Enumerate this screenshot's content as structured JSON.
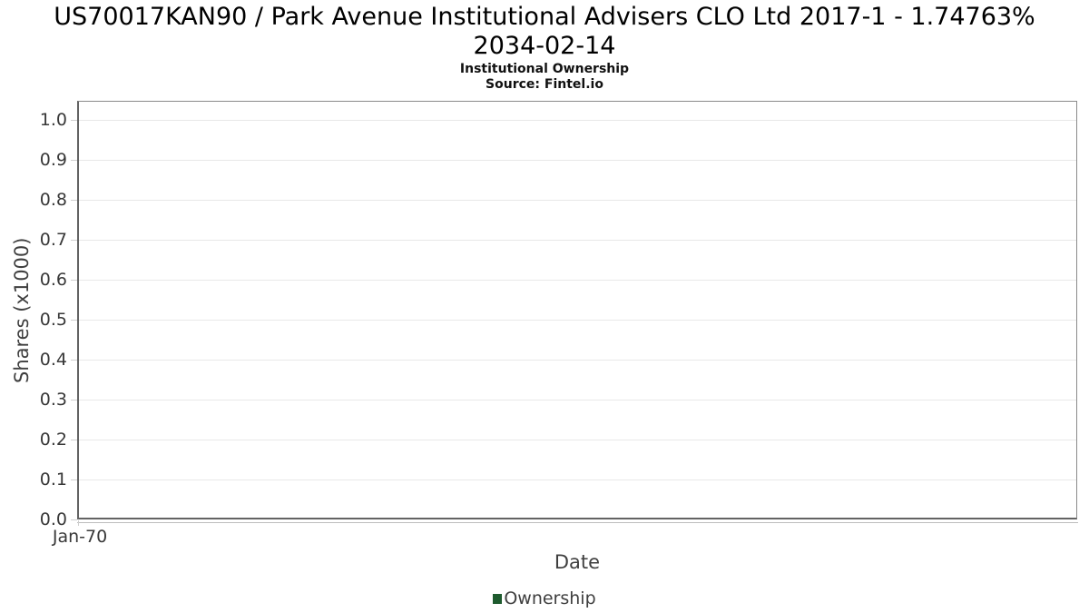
{
  "title": {
    "line1": "US70017KAN90 / Park Avenue Institutional Advisers CLO Ltd 2017-1 - 1.74763%",
    "line2": "2034-02-14"
  },
  "subtitle": "Institutional Ownership",
  "source": "Source: Fintel.io",
  "colors": {
    "ownership_green": "#1e5b2e",
    "gridline": "#e8e8e8",
    "axis_dark": "#636363",
    "axis_light": "#8a8a8a"
  },
  "chart_data": {
    "type": "line",
    "title": "US70017KAN90 / Park Avenue Institutional Advisers CLO Ltd 2017-1 - 1.74763% 2034-02-14",
    "subtitle": "Institutional Ownership",
    "source": "Source: Fintel.io",
    "xlabel": "Date",
    "ylabel": "Shares (x1000)",
    "ylim": [
      0.0,
      1.048
    ],
    "grid": true,
    "legend_position": "bottom-center",
    "y_ticks": [
      {
        "value": 0.0,
        "label": "0.0"
      },
      {
        "value": 0.1,
        "label": "0.1"
      },
      {
        "value": 0.2,
        "label": "0.2"
      },
      {
        "value": 0.3,
        "label": "0.3"
      },
      {
        "value": 0.4,
        "label": "0.4"
      },
      {
        "value": 0.5,
        "label": "0.5"
      },
      {
        "value": 0.6,
        "label": "0.6"
      },
      {
        "value": 0.7,
        "label": "0.7"
      },
      {
        "value": 0.8,
        "label": "0.8"
      },
      {
        "value": 0.9,
        "label": "0.9"
      },
      {
        "value": 1.0,
        "label": "1.0"
      }
    ],
    "x_ticks": [
      {
        "label": "Jan-70",
        "position": 0.0
      }
    ],
    "legend": [
      {
        "label": "Ownership",
        "color": "#1e5b2e"
      }
    ],
    "series": [
      {
        "name": "Ownership",
        "x": [],
        "y": [],
        "color": "#1e5b2e"
      }
    ]
  }
}
